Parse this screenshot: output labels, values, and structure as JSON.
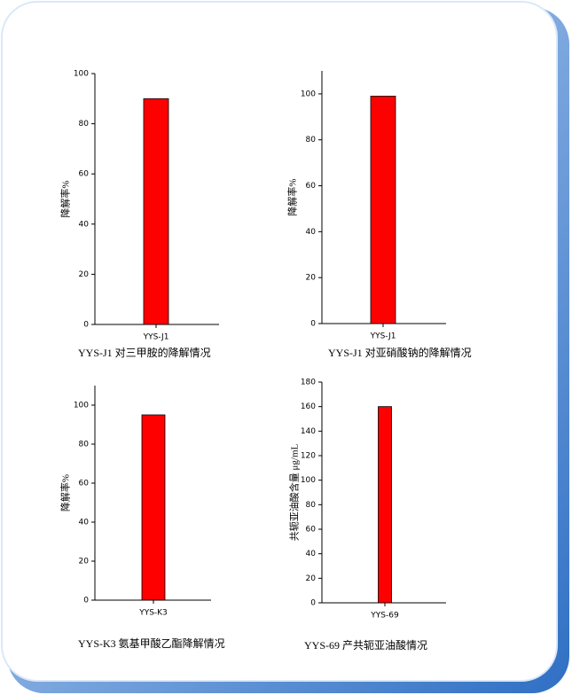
{
  "chart_data": [
    {
      "type": "bar",
      "categories": [
        "YYS-J1"
      ],
      "values": [
        90
      ],
      "color": "#ff0000",
      "ylabel": "降解率%",
      "ylim": [
        0,
        100
      ],
      "yticks": [
        0,
        20,
        40,
        60,
        80,
        100
      ],
      "caption": "YYS-J1 对三甲胺的降解情况"
    },
    {
      "type": "bar",
      "categories": [
        "YYS-J1"
      ],
      "values": [
        99
      ],
      "color": "#ff0000",
      "ylabel": "降解率%",
      "ylim": [
        0,
        110
      ],
      "yticks": [
        0,
        20,
        40,
        60,
        80,
        100
      ],
      "caption": "YYS-J1 对亚硝酸钠的降解情况"
    },
    {
      "type": "bar",
      "categories": [
        "YYS-K3"
      ],
      "values": [
        95
      ],
      "color": "#ff0000",
      "ylabel": "降解率%",
      "ylim": [
        0,
        110
      ],
      "yticks": [
        0,
        20,
        40,
        60,
        80,
        100
      ],
      "caption": "YYS-K3 氨基甲酸乙酯降解情况"
    },
    {
      "type": "bar",
      "categories": [
        "YYS-69"
      ],
      "values": [
        160
      ],
      "color": "#ff0000",
      "ylabel": "共轭亚油酸含量  μg/mL",
      "ylim": [
        0,
        180
      ],
      "yticks": [
        0,
        20,
        40,
        60,
        80,
        100,
        120,
        140,
        160,
        180
      ],
      "caption": "YYS-69 产共轭亚油酸情况"
    }
  ]
}
